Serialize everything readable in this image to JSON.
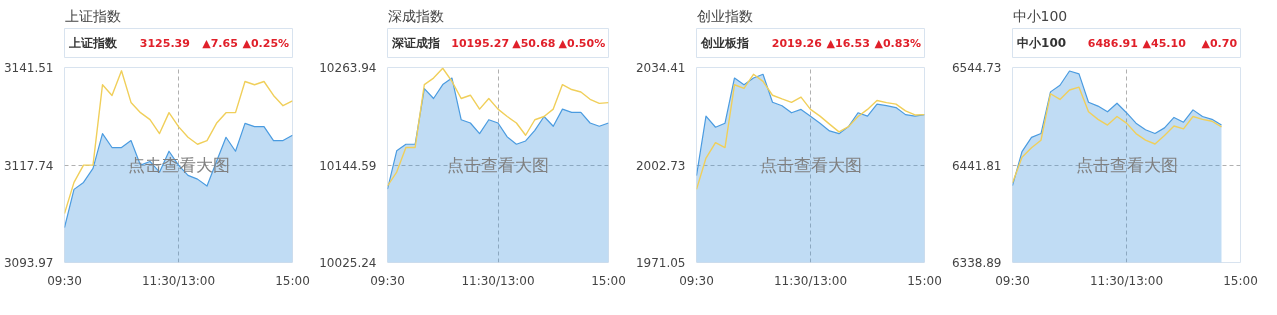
{
  "chart_data": [
    {
      "type": "line",
      "title": "上证指数",
      "subtitle": "上证指数",
      "annotations": [
        "3125.39",
        "▲7.65",
        "▲0.25%",
        "点击查看大图"
      ],
      "categories": [
        "09:30",
        null,
        null,
        null,
        null,
        null,
        null,
        null,
        null,
        null,
        null,
        null,
        "11:30/13:00",
        null,
        null,
        null,
        null,
        null,
        null,
        null,
        null,
        null,
        null,
        null,
        "15:00"
      ],
      "ylim": [
        3093.97,
        3141.51
      ],
      "yticks": [
        3093.97,
        3117.74,
        3141.51
      ],
      "grid": true,
      "series": [
        {
          "type": "area",
          "color": "#4a9be0",
          "values": [
            3102.5,
            3111.8,
            3113.5,
            3116.9,
            3125.4,
            3122.0,
            3122.0,
            3123.7,
            3117.7,
            3118.6,
            3116.0,
            3121.1,
            3117.7,
            3115.2,
            3114.3,
            3112.6,
            3118.6,
            3124.5,
            3121.1,
            3127.9,
            3127.1,
            3127.1,
            3123.7,
            3123.7,
            3125.0
          ]
        },
        {
          "type": "line",
          "color": "#f0cf5a",
          "values": [
            3105.9,
            3113.5,
            3117.7,
            3117.7,
            3137.3,
            3134.7,
            3140.7,
            3133.0,
            3130.5,
            3128.8,
            3125.4,
            3130.5,
            3127.1,
            3124.5,
            3122.8,
            3123.7,
            3127.9,
            3130.5,
            3130.5,
            3138.1,
            3137.3,
            3138.1,
            3134.7,
            3132.2,
            3133.4
          ]
        }
      ]
    },
    {
      "type": "line",
      "title": "深成指数",
      "subtitle": "深证成指",
      "annotations": [
        "10195.27",
        "▲50.68",
        "▲0.50%",
        "点击查看大图"
      ],
      "categories": [
        "09:30",
        null,
        null,
        null,
        null,
        null,
        null,
        null,
        null,
        null,
        null,
        null,
        "11:30/13:00",
        null,
        null,
        null,
        null,
        null,
        null,
        null,
        null,
        null,
        null,
        null,
        "15:00"
      ],
      "ylim": [
        10025.24,
        10263.94
      ],
      "yticks": [
        10025.24,
        10144.59,
        10263.94
      ],
      "grid": true,
      "series": [
        {
          "type": "area",
          "color": "#4a9be0",
          "values": [
            10115,
            10162,
            10170,
            10170,
            10238,
            10226,
            10243,
            10251,
            10200,
            10196,
            10183,
            10200,
            10196,
            10179,
            10170,
            10174,
            10187,
            10204,
            10192,
            10213,
            10209,
            10209,
            10196,
            10192,
            10196
          ]
        },
        {
          "type": "line",
          "color": "#f0cf5a",
          "values": [
            10119,
            10136,
            10166,
            10166,
            10243,
            10251,
            10263,
            10247,
            10226,
            10230,
            10213,
            10226,
            10213,
            10204,
            10196,
            10181,
            10200,
            10204,
            10213,
            10243,
            10237,
            10234,
            10225,
            10220,
            10221
          ]
        }
      ]
    },
    {
      "type": "line",
      "title": "创业指数",
      "subtitle": "创业板指",
      "annotations": [
        "2019.26",
        "▲16.53",
        "▲0.83%",
        "点击查看大图"
      ],
      "categories": [
        "09:30",
        null,
        null,
        null,
        null,
        null,
        null,
        null,
        null,
        null,
        null,
        null,
        "11:30/13:00",
        null,
        null,
        null,
        null,
        null,
        null,
        null,
        null,
        null,
        null,
        null,
        "15:00"
      ],
      "ylim": [
        1971.05,
        2034.41
      ],
      "yticks": [
        1971.05,
        2002.73,
        2034.41
      ],
      "grid": true,
      "series": [
        {
          "type": "area",
          "color": "#4a9be0",
          "values": [
            1999.3,
            2018.6,
            2015.0,
            2016.3,
            2031.0,
            2028.8,
            2031.0,
            2032.2,
            2023.1,
            2022.0,
            2019.7,
            2020.8,
            2018.6,
            2016.3,
            2013.8,
            2012.9,
            2015.2,
            2019.7,
            2018.6,
            2022.5,
            2022.0,
            2021.4,
            2019.1,
            2018.6,
            2019.1
          ]
        },
        {
          "type": "line",
          "color": "#f0cf5a",
          "values": [
            1994.8,
            2005.0,
            2010.0,
            2008.4,
            2028.8,
            2027.6,
            2032.2,
            2029.9,
            2025.4,
            2024.2,
            2023.1,
            2024.8,
            2020.8,
            2018.6,
            2016.0,
            2013.5,
            2015.2,
            2018.5,
            2020.8,
            2023.7,
            2023.0,
            2022.5,
            2020.3,
            2019.0,
            2019.1
          ]
        }
      ]
    },
    {
      "type": "line",
      "title": "中小100",
      "subtitle": "中小100",
      "annotations": [
        "6486.91",
        "▲45.10",
        "▲0.70",
        "点击查看大图"
      ],
      "categories": [
        "09:30",
        null,
        null,
        null,
        null,
        null,
        null,
        null,
        null,
        null,
        null,
        null,
        "11:30/13:00",
        null,
        null,
        null,
        null,
        null,
        null,
        null,
        null,
        null,
        null,
        null,
        "15:00"
      ],
      "ylim": [
        6338.89,
        6544.73
      ],
      "yticks": [
        6338.89,
        6441.81,
        6544.73
      ],
      "grid": true,
      "series": [
        {
          "type": "area",
          "color": "#4a9be0",
          "values": [
            6420,
            6456,
            6471,
            6475,
            6519,
            6526,
            6541,
            6538,
            6508,
            6504,
            6498,
            6507,
            6497,
            6486,
            6479,
            6475,
            6481,
            6492,
            6487,
            6500,
            6493,
            6490,
            6484,
            null,
            null
          ]
        },
        {
          "type": "line",
          "color": "#f0cf5a",
          "values": [
            6423,
            6450,
            6460,
            6468,
            6517,
            6511,
            6521,
            6524,
            6498,
            6490,
            6484,
            6493,
            6486,
            6475,
            6468,
            6464,
            6473,
            6483,
            6480,
            6493,
            6490,
            6488,
            6482,
            null,
            null
          ]
        }
      ]
    }
  ]
}
